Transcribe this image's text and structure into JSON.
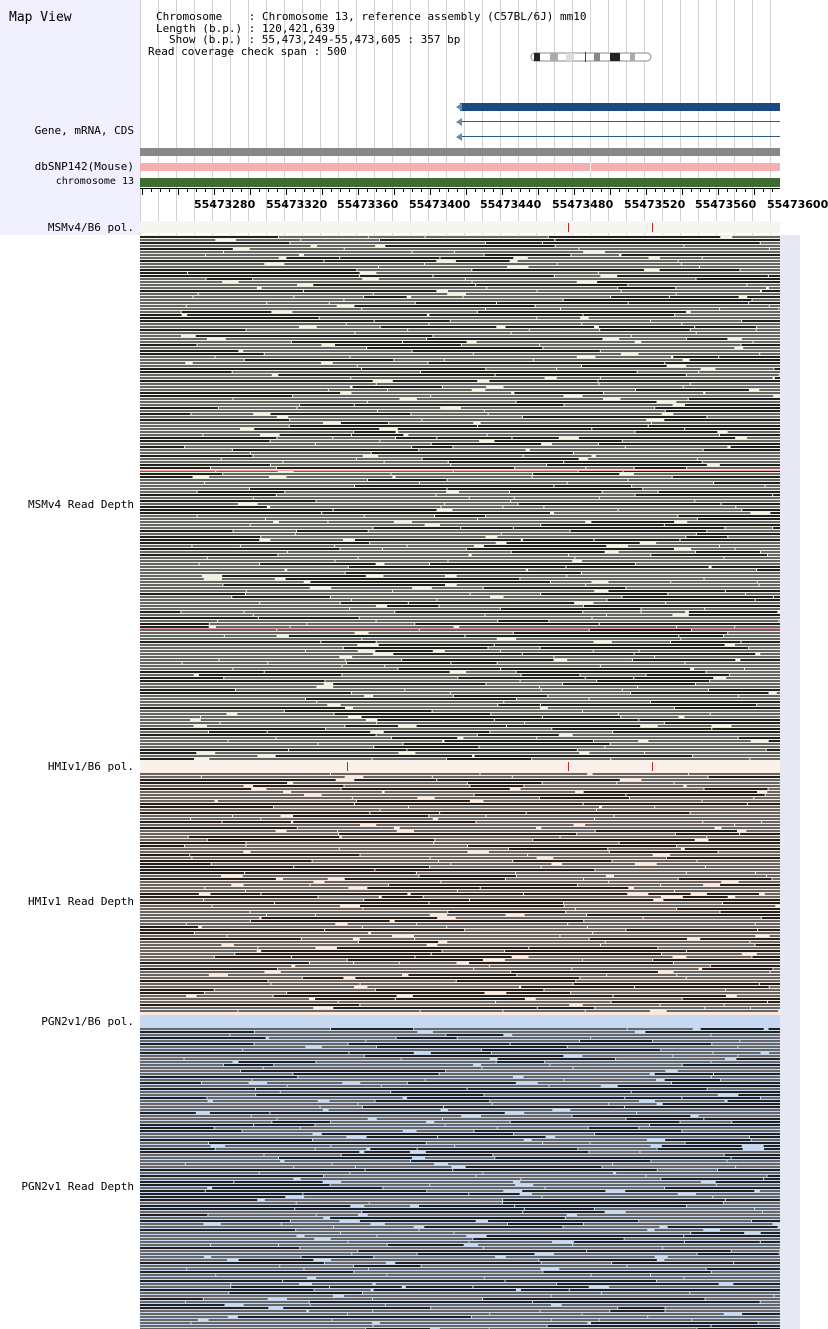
{
  "app_title": "Map View",
  "info": {
    "chromosome_key": "Chromosome",
    "chromosome_val": "Chromosome 13, reference assembly (C57BL/6J) mm10",
    "length_key": "Length (b.p.)",
    "length_val": "120,421,639",
    "show_key": "Show (b.p.)",
    "show_val": "55,473,249-55,473,605 : 357 bp",
    "span_key": "Read coverage check span",
    "span_val": "500"
  },
  "track_labels": {
    "gene": "Gene, mRNA, CDS",
    "dbsnp": "dbSNP142(Mouse)",
    "chrom": "chromosome 13",
    "msm_pol": "MSMv4/B6 pol.",
    "msm_depth": "MSMv4 Read Depth",
    "hmi_pol": "HMIv1/B6 pol.",
    "hmi_depth": "HMIv1 Read Depth",
    "pgn_pol": "PGN2v1/B6 pol.",
    "pgn_depth": "PGN2v1 Read Depth"
  },
  "ruler_ticks": [
    "55473280",
    "55473320",
    "55473360",
    "55473400",
    "55473440",
    "55473480",
    "55473520",
    "55473560",
    "55473600"
  ],
  "colors": {
    "gene": "#1a4a80",
    "dbsnp": "#f4b0b0",
    "chrom": "#3e6b2e",
    "msm_bg": "#edf2e3",
    "hmi_bg": "#fbe8dc",
    "pgn_bg": "#c7d9f0",
    "snp_mark": "#cc2222"
  }
}
